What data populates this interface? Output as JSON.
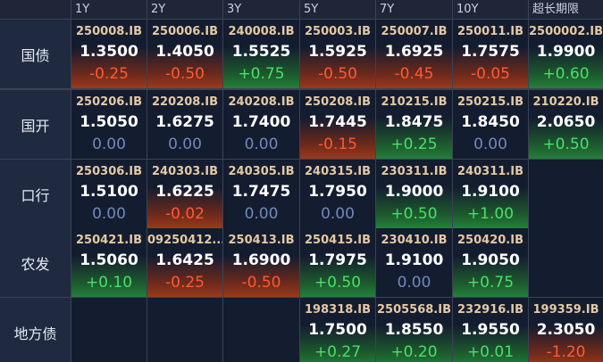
{
  "table": {
    "header": [
      "1Y",
      "2Y",
      "3Y",
      "5Y",
      "7Y",
      "10Y",
      "超长期限"
    ],
    "rows": [
      {
        "label": "国债",
        "cells": [
          {
            "code": "250008.IB",
            "yield": "1.3500",
            "change": "-0.25"
          },
          {
            "code": "250006.IB",
            "yield": "1.4050",
            "change": "-0.50"
          },
          {
            "code": "240008.IB",
            "yield": "1.5525",
            "change": "+0.75"
          },
          {
            "code": "250003.IB",
            "yield": "1.5925",
            "change": "-0.50"
          },
          {
            "code": "250007.IB",
            "yield": "1.6925",
            "change": "-0.45"
          },
          {
            "code": "250011.IB",
            "yield": "1.7575",
            "change": "-0.05"
          },
          {
            "code": "2500002.IB",
            "yield": "1.9900",
            "change": "+0.60"
          }
        ]
      },
      {
        "label": "国开",
        "cells": [
          {
            "code": "250206.IB",
            "yield": "1.5050",
            "change": "0.00"
          },
          {
            "code": "220208.IB",
            "yield": "1.6275",
            "change": "0.00"
          },
          {
            "code": "240208.IB",
            "yield": "1.7400",
            "change": "0.00"
          },
          {
            "code": "250208.IB",
            "yield": "1.7445",
            "change": "-0.15"
          },
          {
            "code": "210215.IB",
            "yield": "1.8475",
            "change": "+0.25"
          },
          {
            "code": "250215.IB",
            "yield": "1.8450",
            "change": "0.00"
          },
          {
            "code": "210220.IB",
            "yield": "2.0650",
            "change": "+0.50"
          }
        ]
      },
      {
        "label": "口行",
        "cells": [
          {
            "code": "250306.IB",
            "yield": "1.5100",
            "change": "0.00"
          },
          {
            "code": "240303.IB",
            "yield": "1.6225",
            "change": "-0.02"
          },
          {
            "code": "240305.IB",
            "yield": "1.7475",
            "change": "0.00"
          },
          {
            "code": "240315.IB",
            "yield": "1.7950",
            "change": "0.00"
          },
          {
            "code": "230311.IB",
            "yield": "1.9000",
            "change": "+0.50"
          },
          {
            "code": "240311.IB",
            "yield": "1.9100",
            "change": "+1.00"
          },
          null
        ]
      },
      {
        "label": "农发",
        "cells": [
          {
            "code": "250421.IB",
            "yield": "1.5060",
            "change": "+0.10"
          },
          {
            "code": "09250412...",
            "yield": "1.6425",
            "change": "-0.25"
          },
          {
            "code": "250413.IB",
            "yield": "1.6900",
            "change": "-0.50"
          },
          {
            "code": "250415.IB",
            "yield": "1.7975",
            "change": "+0.50"
          },
          {
            "code": "230410.IB",
            "yield": "1.9100",
            "change": "0.00"
          },
          {
            "code": "250420.IB",
            "yield": "1.9050",
            "change": "+0.75"
          },
          null
        ]
      },
      {
        "label": "地方债",
        "cells": [
          null,
          null,
          null,
          {
            "code": "198318.IB",
            "yield": "1.7500",
            "change": "+0.27"
          },
          {
            "code": "2505568.IB",
            "yield": "1.8550",
            "change": "+0.20"
          },
          {
            "code": "232916.IB",
            "yield": "1.9550",
            "change": "+0.01"
          },
          {
            "code": "199359.IB",
            "yield": "2.3050",
            "change": "-1.20"
          }
        ]
      }
    ]
  }
}
